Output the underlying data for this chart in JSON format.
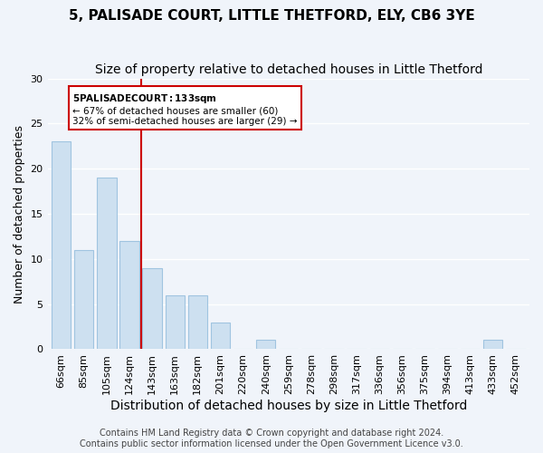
{
  "title": "5, PALISADE COURT, LITTLE THETFORD, ELY, CB6 3YE",
  "subtitle": "Size of property relative to detached houses in Little Thetford",
  "xlabel": "Distribution of detached houses by size in Little Thetford",
  "ylabel": "Number of detached properties",
  "bar_labels": [
    "66sqm",
    "85sqm",
    "105sqm",
    "124sqm",
    "143sqm",
    "163sqm",
    "182sqm",
    "201sqm",
    "220sqm",
    "240sqm",
    "259sqm",
    "278sqm",
    "298sqm",
    "317sqm",
    "336sqm",
    "356sqm",
    "375sqm",
    "394sqm",
    "413sqm",
    "433sqm",
    "452sqm"
  ],
  "bar_values": [
    23,
    11,
    19,
    12,
    9,
    6,
    6,
    3,
    0,
    1,
    0,
    0,
    0,
    0,
    0,
    0,
    0,
    0,
    0,
    1,
    0
  ],
  "bar_color": "#cde0f0",
  "bar_edge_color": "#a0c4e0",
  "vline_x": 3.5,
  "vline_color": "#cc0000",
  "annotation_title": "5 PALISADE COURT: 133sqm",
  "annotation_line1": "← 67% of detached houses are smaller (60)",
  "annotation_line2": "32% of semi-detached houses are larger (29) →",
  "annotation_box_color": "#ffffff",
  "annotation_box_edge": "#cc0000",
  "ylim": [
    0,
    30
  ],
  "yticks": [
    0,
    5,
    10,
    15,
    20,
    25,
    30
  ],
  "footer1": "Contains HM Land Registry data © Crown copyright and database right 2024.",
  "footer2": "Contains public sector information licensed under the Open Government Licence v3.0.",
  "background_color": "#f0f4fa",
  "grid_color": "#ffffff",
  "title_fontsize": 11,
  "subtitle_fontsize": 10,
  "xlabel_fontsize": 10,
  "ylabel_fontsize": 9,
  "tick_fontsize": 8,
  "footer_fontsize": 7
}
